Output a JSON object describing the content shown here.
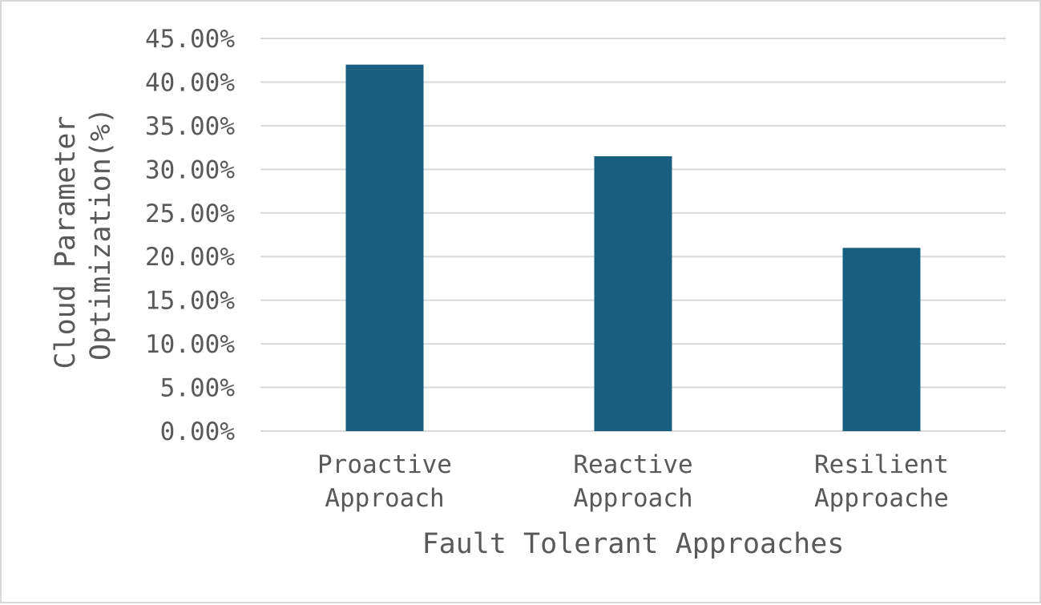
{
  "chart_data": {
    "type": "bar",
    "categories": [
      [
        "Proactive",
        "Approach"
      ],
      [
        "Reactive",
        "Approach"
      ],
      [
        "Resilient",
        "Approache"
      ]
    ],
    "values": [
      42.0,
      31.5,
      21.0
    ],
    "value_unit": "%",
    "xlabel": "Fault Tolerant Approaches",
    "ylabel": [
      "Cloud Parameter",
      "Optimization(%)"
    ],
    "ylim": [
      0,
      45
    ],
    "yticks": [
      "0.00%",
      "5.00%",
      "10.00%",
      "15.00%",
      "20.00%",
      "25.00%",
      "30.00%",
      "35.00%",
      "40.00%",
      "45.00%"
    ],
    "grid": "horizontal",
    "legend": "none",
    "colors": {
      "bar": "#175e80",
      "grid": "#d9d9d9",
      "text": "#595959"
    }
  }
}
